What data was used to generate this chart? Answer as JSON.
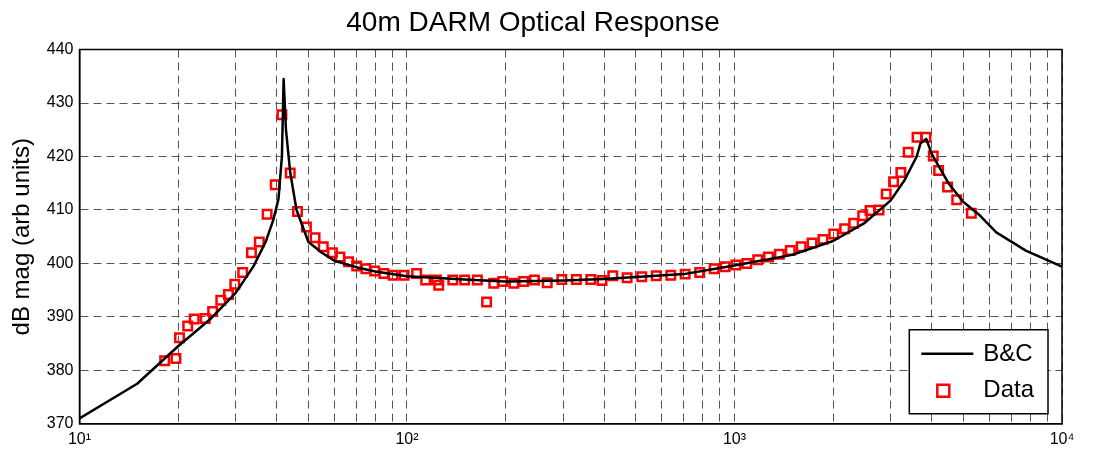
{
  "chart_data": {
    "type": "line",
    "title": "40m DARM Optical Response",
    "ylabel": "dB mag (arb units)",
    "log": "x",
    "grid": true,
    "legend": "bottom right",
    "xlim": [
      10,
      10000
    ],
    "ylim": [
      370,
      440
    ],
    "xticks": [
      {
        "value": 10,
        "label": "10¹"
      },
      {
        "value": 20,
        "label": null
      },
      {
        "value": 30,
        "label": null
      },
      {
        "value": 40,
        "label": null
      },
      {
        "value": 50,
        "label": null
      },
      {
        "value": 60,
        "label": null
      },
      {
        "value": 70,
        "label": null
      },
      {
        "value": 80,
        "label": null
      },
      {
        "value": 90,
        "label": null
      },
      {
        "value": 100,
        "label": "10²"
      },
      {
        "value": 200,
        "label": null
      },
      {
        "value": 300,
        "label": null
      },
      {
        "value": 400,
        "label": null
      },
      {
        "value": 500,
        "label": null
      },
      {
        "value": 600,
        "label": null
      },
      {
        "value": 700,
        "label": null
      },
      {
        "value": 800,
        "label": null
      },
      {
        "value": 900,
        "label": null
      },
      {
        "value": 1000,
        "label": "10³"
      },
      {
        "value": 2000,
        "label": null
      },
      {
        "value": 3000,
        "label": null
      },
      {
        "value": 4000,
        "label": null
      },
      {
        "value": 5000,
        "label": null
      },
      {
        "value": 6000,
        "label": null
      },
      {
        "value": 7000,
        "label": null
      },
      {
        "value": 8000,
        "label": null
      },
      {
        "value": 9000,
        "label": null
      },
      {
        "value": 10000,
        "label": "10⁴"
      }
    ],
    "yticks": [
      370,
      380,
      390,
      400,
      410,
      420,
      430,
      440
    ],
    "series": [
      {
        "name": "B&C",
        "type": "line",
        "marker": "none",
        "line_style": "solid",
        "color": "#000000",
        "x": [
          10,
          15,
          20,
          25,
          30,
          34,
          37,
          39,
          40.5,
          41.5,
          42,
          42.7,
          44,
          46,
          50,
          55,
          60,
          70,
          80,
          100,
          150,
          200,
          300,
          400,
          700,
          1000,
          1500,
          2000,
          2500,
          3000,
          3300,
          3600,
          3700,
          3850,
          4000,
          4500,
          5000,
          5560,
          6300,
          7750,
          10000
        ],
        "values": [
          371,
          377.5,
          384.5,
          389.5,
          394.5,
          399.5,
          404,
          408,
          412,
          420,
          434.5,
          425,
          417,
          410,
          404,
          402,
          400.5,
          399.3,
          398.5,
          397.6,
          397,
          396.6,
          396.8,
          397.1,
          398,
          399.6,
          401.6,
          404.2,
          407.6,
          411.8,
          415.5,
          420,
          422.5,
          423.3,
          420.5,
          415,
          411.5,
          409.2,
          405.8,
          402.4,
          399.4
        ]
      },
      {
        "name": "Data",
        "type": "scatter",
        "marker": "square",
        "color": "#ff0000",
        "x": [
          18.2,
          19.7,
          20.2,
          21.4,
          22.4,
          24.2,
          25.5,
          27,
          28.5,
          29.8,
          31.5,
          33.5,
          35.4,
          37.4,
          39.6,
          41.5,
          44,
          46.3,
          49.3,
          52.4,
          55.5,
          59.2,
          62.4,
          66.3,
          70.2,
          74.9,
          79.7,
          85,
          90.7,
          98,
          107,
          114,
          123,
          125,
          138,
          150,
          164,
          175,
          184,
          196,
          212,
          227,
          245,
          268,
          297,
          329,
          364,
          394,
          425,
          470,
          521,
          577,
          639,
          707,
          783,
          867,
          936,
          1010,
          1090,
          1177,
          1270,
          1371,
          1480,
          1598,
          1725,
          1862,
          2009,
          2169,
          2311,
          2463,
          2593,
          2763,
          2906,
          3060,
          3221,
          3391,
          3609,
          3843,
          4045,
          4200,
          4475,
          4770,
          5287
        ],
        "values": [
          381.8,
          382.2,
          386.1,
          388.3,
          389.6,
          389.7,
          391,
          393.1,
          394.2,
          396.1,
          398.3,
          402,
          404,
          409.2,
          414.7,
          427.8,
          416.9,
          409.7,
          406.8,
          404.8,
          403.1,
          402,
          401.2,
          400.3,
          399.5,
          399,
          398.6,
          398.1,
          397.8,
          397.8,
          398.1,
          396.9,
          396.9,
          395.9,
          396.9,
          396.9,
          396.9,
          392.8,
          396.3,
          396.6,
          396.3,
          396.6,
          396.9,
          396.4,
          397,
          397,
          397,
          396.8,
          397.7,
          397.3,
          397.5,
          397.7,
          397.8,
          398,
          398.3,
          399,
          399.4,
          399.7,
          400,
          400.7,
          401.2,
          401.7,
          402.4,
          403.1,
          403.8,
          404.5,
          405.5,
          406.5,
          407.5,
          408.9,
          409.9,
          410,
          413,
          415.3,
          417,
          420.8,
          423.6,
          423.6,
          420.1,
          417.4,
          414.3,
          411.9,
          409.4
        ]
      }
    ]
  }
}
